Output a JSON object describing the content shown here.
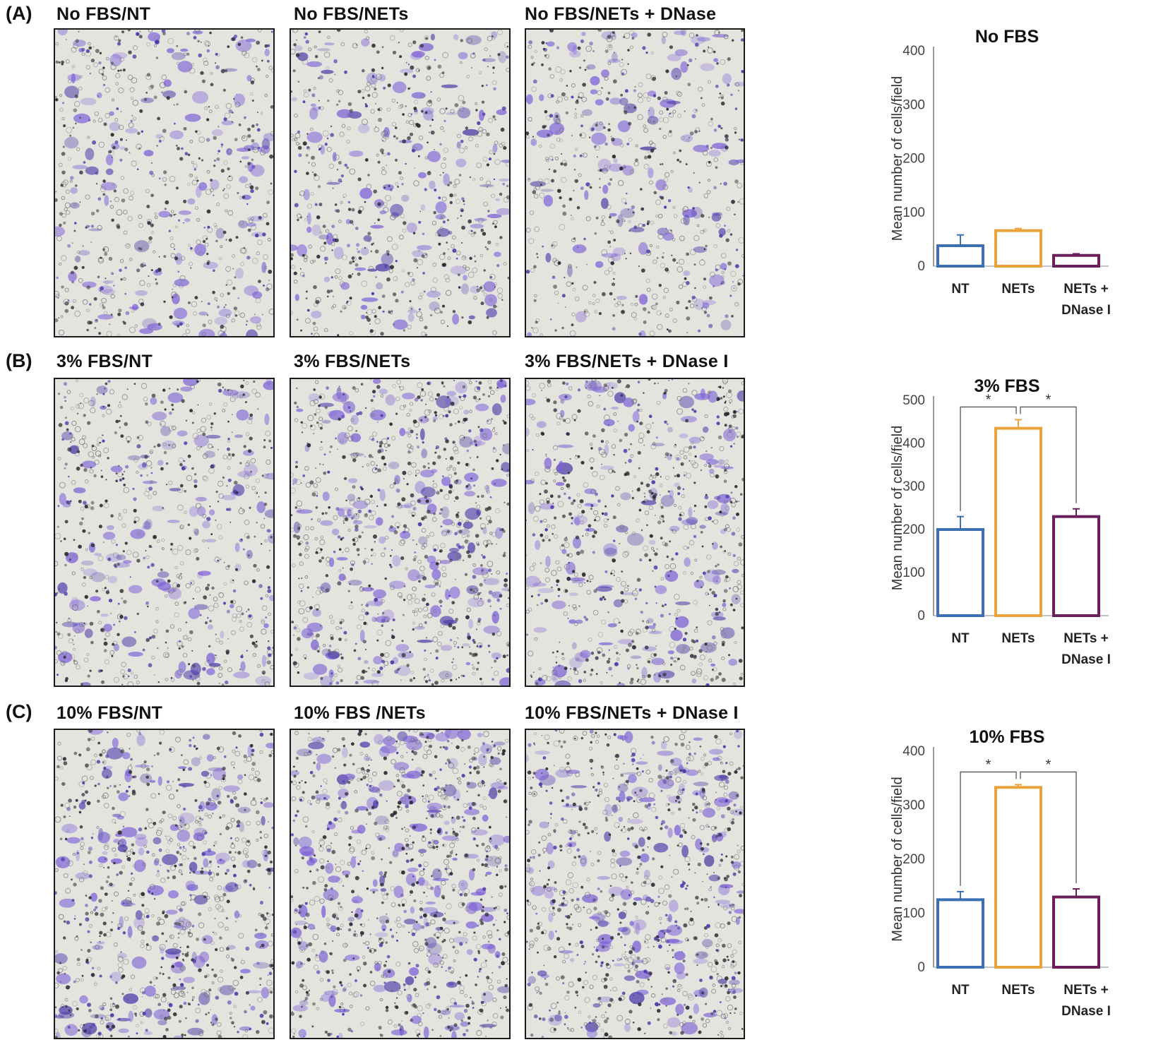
{
  "rows": [
    {
      "letter": "(A)",
      "images": [
        {
          "label": "No FBS/NT",
          "density": 0.32
        },
        {
          "label": "No FBS/NETs",
          "density": 0.34
        },
        {
          "label": "No FBS/NETs  + DNase",
          "density": 0.26
        }
      ]
    },
    {
      "letter": "(B)",
      "images": [
        {
          "label": "3%  FBS/NT",
          "density": 0.36
        },
        {
          "label": "3%  FBS/NETs",
          "density": 0.62
        },
        {
          "label": "3%  FBS/NETs  + DNase  I",
          "density": 0.48
        }
      ]
    },
    {
      "letter": "(C)",
      "images": [
        {
          "label": "10%  FBS/NT",
          "density": 0.55
        },
        {
          "label": "10%  FBS /NETs",
          "density": 0.72
        },
        {
          "label": "10%  FBS/NETs  + DNase  I",
          "density": 0.6
        }
      ]
    }
  ],
  "colors": {
    "stain": "#7c5fd6",
    "stain_dark": "#4b3aa8",
    "dot": "#2b2b35",
    "background": "#e4e4df",
    "nt": "#3c6fb0",
    "nets": "#e8a43a",
    "dnase": "#6b1e5c"
  },
  "chart_data": [
    {
      "type": "bar",
      "title": "No FBS",
      "ylabel": "Mean number of cells/field",
      "categories": [
        "NT",
        "NETs",
        "NETs +\nDNase I"
      ],
      "values": [
        38,
        66,
        20
      ],
      "errors": [
        20,
        4,
        3
      ],
      "ylim": [
        0,
        400
      ],
      "yticks": [
        0,
        100,
        200,
        300,
        400
      ],
      "significance": []
    },
    {
      "type": "bar",
      "title": "3%  FBS",
      "ylabel": "Mean number of cells/field",
      "categories": [
        "NT",
        "NETs",
        "NETs +\nDNase I"
      ],
      "values": [
        200,
        435,
        230
      ],
      "errors": [
        30,
        20,
        18
      ],
      "ylim": [
        0,
        500
      ],
      "yticks": [
        0,
        100,
        200,
        300,
        400,
        500
      ],
      "significance": [
        {
          "from": 0,
          "to": 1,
          "label": "*"
        },
        {
          "from": 1,
          "to": 2,
          "label": "*"
        }
      ]
    },
    {
      "type": "bar",
      "title": "10%  FBS",
      "ylabel": "Mean number of cells/field",
      "categories": [
        "NT",
        "NETs",
        "NETs +\nDNase I"
      ],
      "values": [
        125,
        333,
        130
      ],
      "errors": [
        15,
        5,
        15
      ],
      "ylim": [
        0,
        400
      ],
      "yticks": [
        0,
        100,
        200,
        300,
        400
      ],
      "significance": [
        {
          "from": 0,
          "to": 1,
          "label": "*"
        },
        {
          "from": 1,
          "to": 2,
          "label": "*"
        }
      ]
    }
  ]
}
